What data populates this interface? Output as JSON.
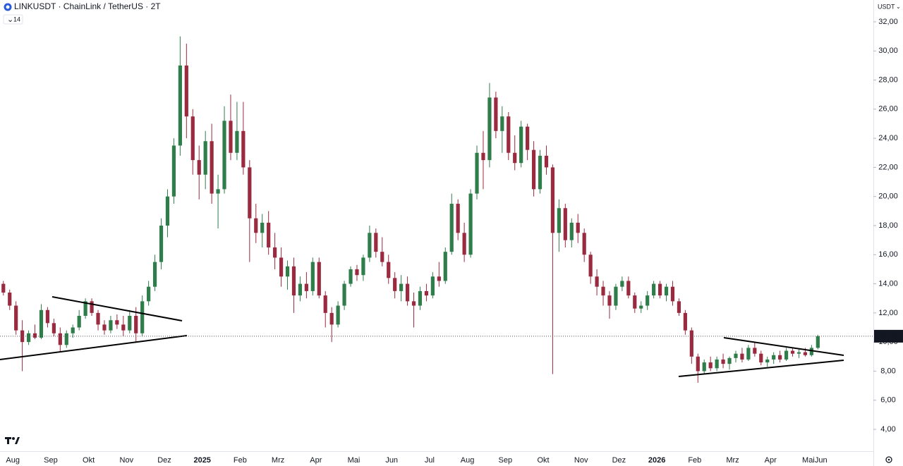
{
  "header": {
    "symbol": "LINKUSDT · ChainLink / TetherUS · 2T",
    "indicator": "14",
    "currency": "USDT"
  },
  "chart_data": {
    "type": "candlestick",
    "up_color": "#2f7d4a",
    "down_color": "#9a2a3f",
    "ylim": [
      2.5,
      33.5
    ],
    "yticks": [
      {
        "value": 4,
        "label": "4,00"
      },
      {
        "value": 6,
        "label": "6,00"
      },
      {
        "value": 8,
        "label": "8,00"
      },
      {
        "value": 10,
        "label": "10,00"
      },
      {
        "value": 12,
        "label": "12,00"
      },
      {
        "value": 14,
        "label": "14,00"
      },
      {
        "value": 16,
        "label": "16,00"
      },
      {
        "value": 18,
        "label": "18,00"
      },
      {
        "value": 20,
        "label": "20,00"
      },
      {
        "value": 22,
        "label": "22,00"
      },
      {
        "value": 24,
        "label": "24,00"
      },
      {
        "value": 26,
        "label": "26,00"
      },
      {
        "value": 28,
        "label": "28,00"
      },
      {
        "value": 30,
        "label": "30,00"
      },
      {
        "value": 32,
        "label": "32,00"
      }
    ],
    "last_price": {
      "value": 10.4,
      "label": "10,40"
    },
    "months": [
      {
        "label": null,
        "candles": [
          [
            14,
            14.2,
            13.2,
            13.4
          ],
          [
            13.4,
            13.6,
            12.2,
            12.5
          ]
        ]
      },
      {
        "label": "Aug",
        "candles": [
          [
            12.5,
            12.8,
            10.5,
            10.8
          ],
          [
            10.8,
            11.5,
            8.0,
            10.0
          ],
          [
            10,
            10.8,
            9.8,
            10.6
          ],
          [
            10.6,
            11.2,
            10.2,
            10.3
          ],
          [
            10.3,
            12.6,
            10.2,
            12.2
          ],
          [
            12.2,
            12.4,
            11.0,
            11.3
          ]
        ]
      },
      {
        "label": "Sep",
        "candles": [
          [
            11.3,
            11.6,
            10.4,
            10.6
          ],
          [
            10.6,
            11.0,
            9.3,
            9.8
          ],
          [
            9.8,
            10.8,
            9.6,
            10.6
          ],
          [
            10.6,
            11.2,
            10.3,
            11.0
          ],
          [
            11,
            12.2,
            10.8,
            11.8
          ],
          [
            11.8,
            13.0,
            11.6,
            12.8
          ]
        ]
      },
      {
        "label": "Okt",
        "candles": [
          [
            12.8,
            13.0,
            11.8,
            12.0
          ],
          [
            12,
            12.2,
            10.8,
            11.2
          ],
          [
            11.2,
            11.5,
            10.5,
            10.8
          ],
          [
            10.8,
            11.8,
            10.6,
            11.5
          ],
          [
            11.5,
            11.9,
            10.9,
            11.2
          ],
          [
            11.2,
            11.8,
            10.4,
            10.8
          ]
        ]
      },
      {
        "label": "Nov",
        "candles": [
          [
            10.8,
            12.2,
            10.6,
            11.8
          ],
          [
            11.8,
            12.4,
            10.0,
            10.6
          ],
          [
            10.6,
            13.2,
            10.4,
            12.8
          ],
          [
            12.8,
            14.2,
            12.5,
            13.8
          ],
          [
            13.8,
            16.0,
            13.5,
            15.5
          ],
          [
            15.5,
            18.5,
            15.0,
            18.0
          ]
        ]
      },
      {
        "label": "Dez",
        "candles": [
          [
            18,
            20.5,
            17.2,
            20.0
          ],
          [
            20,
            24,
            19.5,
            23.5
          ],
          [
            23.5,
            31,
            22.8,
            29
          ],
          [
            29,
            30.5,
            24,
            25.5
          ],
          [
            25.5,
            26,
            21.5,
            22.5
          ],
          [
            22.5,
            23.5,
            19.8,
            21.5
          ]
        ]
      },
      {
        "label": "2025",
        "candles": [
          [
            21.5,
            24.5,
            20.5,
            23.8
          ],
          [
            23.8,
            25,
            19.5,
            20.2
          ],
          [
            20.2,
            21.5,
            17.8,
            20.5
          ],
          [
            20.5,
            26.2,
            20.2,
            25.2
          ],
          [
            25.2,
            27,
            22.5,
            23.0
          ],
          [
            23,
            26.5,
            22.5,
            24.5
          ]
        ]
      },
      {
        "label": "Feb",
        "candles": [
          [
            24.5,
            26.5,
            21.5,
            22.0
          ],
          [
            22,
            22.5,
            15.5,
            18.5
          ],
          [
            18.5,
            19.5,
            16.8,
            17.5
          ],
          [
            17.5,
            18.8,
            16.5,
            18.2
          ],
          [
            18.2,
            19.0,
            16.0,
            16.5
          ],
          [
            16.5,
            17.5,
            15.0,
            15.8
          ]
        ]
      },
      {
        "label": "Mrz",
        "candles": [
          [
            15.8,
            16.5,
            13.8,
            14.5
          ],
          [
            14.5,
            15.6,
            13.6,
            15.2
          ],
          [
            15.2,
            15.8,
            12.0,
            13.2
          ],
          [
            13.2,
            14.5,
            12.8,
            14.0
          ],
          [
            14,
            14.8,
            13.0,
            13.5
          ],
          [
            13.5,
            15.8,
            13.2,
            15.5
          ]
        ]
      },
      {
        "label": "Apr",
        "candles": [
          [
            15.5,
            15.8,
            13.0,
            13.2
          ],
          [
            13.2,
            13.5,
            11.0,
            12.0
          ],
          [
            12,
            12.4,
            10.0,
            11.2
          ],
          [
            11.2,
            12.8,
            11.0,
            12.5
          ],
          [
            12.5,
            14.2,
            12.2,
            14.0
          ],
          [
            14,
            15.2,
            13.8,
            15.0
          ]
        ]
      },
      {
        "label": "Mai",
        "candles": [
          [
            15,
            15.3,
            14.2,
            14.6
          ],
          [
            14.6,
            16.0,
            14.2,
            15.8
          ],
          [
            15.8,
            18.0,
            15.5,
            17.5
          ],
          [
            17.5,
            17.8,
            15.8,
            16.2
          ],
          [
            16.2,
            17.2,
            15.2,
            15.5
          ],
          [
            15.5,
            16.0,
            14.0,
            14.4
          ]
        ]
      },
      {
        "label": "Jun",
        "candles": [
          [
            14.4,
            14.8,
            13.0,
            13.5
          ],
          [
            13.5,
            14.6,
            12.8,
            14.0
          ],
          [
            14,
            14.5,
            12.5,
            12.8
          ],
          [
            12.8,
            13.4,
            11.0,
            12.5
          ],
          [
            12.5,
            13.8,
            12.2,
            13.5
          ],
          [
            13.5,
            14.0,
            12.8,
            13.2
          ]
        ]
      },
      {
        "label": "Jul",
        "candles": [
          [
            13.2,
            14.8,
            13.0,
            14.5
          ],
          [
            14.5,
            15.5,
            13.8,
            14.2
          ],
          [
            14.2,
            16.5,
            14.0,
            16.2
          ],
          [
            16.2,
            20.2,
            16.0,
            19.5
          ],
          [
            19.5,
            19.8,
            17.0,
            17.5
          ],
          [
            17.5,
            18.2,
            15.5,
            16.0
          ]
        ]
      },
      {
        "label": "Aug",
        "candles": [
          [
            16,
            20.5,
            15.8,
            20.2
          ],
          [
            20.2,
            23.5,
            19.8,
            23.0
          ],
          [
            23,
            24.5,
            20.5,
            22.5
          ],
          [
            22.5,
            27.8,
            22.0,
            26.8
          ],
          [
            26.8,
            27.2,
            24.0,
            24.5
          ],
          [
            24.5,
            26.2,
            23.0,
            25.5
          ]
        ]
      },
      {
        "label": "Sep",
        "candles": [
          [
            25.5,
            25.8,
            22.5,
            23.0
          ],
          [
            23,
            24.2,
            21.8,
            22.3
          ],
          [
            22.3,
            25.2,
            22.0,
            24.8
          ],
          [
            24.8,
            25.0,
            22.5,
            23.2
          ],
          [
            23.2,
            23.8,
            20.0,
            20.5
          ],
          [
            20.5,
            23.2,
            20.2,
            22.8
          ]
        ]
      },
      {
        "label": "Okt",
        "candles": [
          [
            22.8,
            23.5,
            21.5,
            22.0
          ],
          [
            22,
            22.2,
            7.8,
            17.5
          ],
          [
            17.5,
            19.8,
            16.2,
            19.2
          ],
          [
            19.2,
            19.5,
            16.5,
            17.0
          ],
          [
            17,
            18.5,
            16.5,
            18.2
          ],
          [
            18.2,
            18.8,
            16.8,
            17.5
          ]
        ]
      },
      {
        "label": "Nov",
        "candles": [
          [
            17.5,
            17.8,
            15.5,
            16.0
          ],
          [
            16,
            16.2,
            14.0,
            14.5
          ],
          [
            14.5,
            15.0,
            13.2,
            13.8
          ],
          [
            13.8,
            14.2,
            12.5,
            13.2
          ],
          [
            13.2,
            13.5,
            11.6,
            12.5
          ],
          [
            12.5,
            14.0,
            12.2,
            13.8
          ]
        ]
      },
      {
        "label": "Dez",
        "candles": [
          [
            13.8,
            14.5,
            13.5,
            14.2
          ],
          [
            14.2,
            14.5,
            13.0,
            13.2
          ],
          [
            13.2,
            13.4,
            12.0,
            12.3
          ],
          [
            12.3,
            12.8,
            12.0,
            12.5
          ],
          [
            12.5,
            13.5,
            12.2,
            13.2
          ],
          [
            13.2,
            14.2,
            13.0,
            14.0
          ]
        ]
      },
      {
        "label": "2026",
        "candles": [
          [
            14,
            14.2,
            13.0,
            13.2
          ],
          [
            13.2,
            14.0,
            12.8,
            13.8
          ],
          [
            13.8,
            14.2,
            12.5,
            12.8
          ],
          [
            12.8,
            13.0,
            11.8,
            12.0
          ],
          [
            12,
            12.2,
            10.5,
            10.8
          ],
          [
            10.8,
            11.0,
            8.5,
            9.0
          ]
        ]
      },
      {
        "label": "Feb",
        "candles": [
          [
            9,
            9.2,
            7.2,
            8.0
          ],
          [
            8,
            8.8,
            7.8,
            8.6
          ],
          [
            8.6,
            9.0,
            8.0,
            8.2
          ],
          [
            8.2,
            9.0,
            8.0,
            8.8
          ],
          [
            8.8,
            9.2,
            8.2,
            8.5
          ],
          [
            8.5,
            9.0,
            8.1,
            8.9
          ]
        ]
      },
      {
        "label": "Mrz",
        "candles": [
          [
            8.9,
            9.4,
            8.6,
            9.2
          ],
          [
            9.2,
            9.6,
            8.6,
            8.8
          ],
          [
            8.8,
            9.8,
            8.7,
            9.6
          ],
          [
            9.6,
            10.0,
            9.0,
            9.2
          ],
          [
            9.2,
            9.4,
            8.4,
            8.6
          ],
          [
            8.6,
            9.0,
            8.3,
            8.8
          ]
        ]
      },
      {
        "label": "Apr",
        "candles": [
          [
            8.8,
            9.3,
            8.5,
            9.1
          ],
          [
            9.1,
            9.4,
            8.6,
            8.8
          ],
          [
            8.8,
            9.6,
            8.7,
            9.4
          ],
          [
            9.4,
            9.6,
            9.0,
            9.2
          ],
          [
            9.2,
            9.5,
            8.9,
            9.3
          ],
          [
            9.3,
            9.6,
            9.0,
            9.1
          ]
        ]
      },
      {
        "label": "Mai",
        "candles": [
          [
            9.1,
            9.8,
            9.0,
            9.6
          ],
          [
            9.6,
            10.5,
            9.5,
            10.4
          ]
        ]
      },
      {
        "label": "Jun",
        "candles": []
      }
    ]
  }
}
